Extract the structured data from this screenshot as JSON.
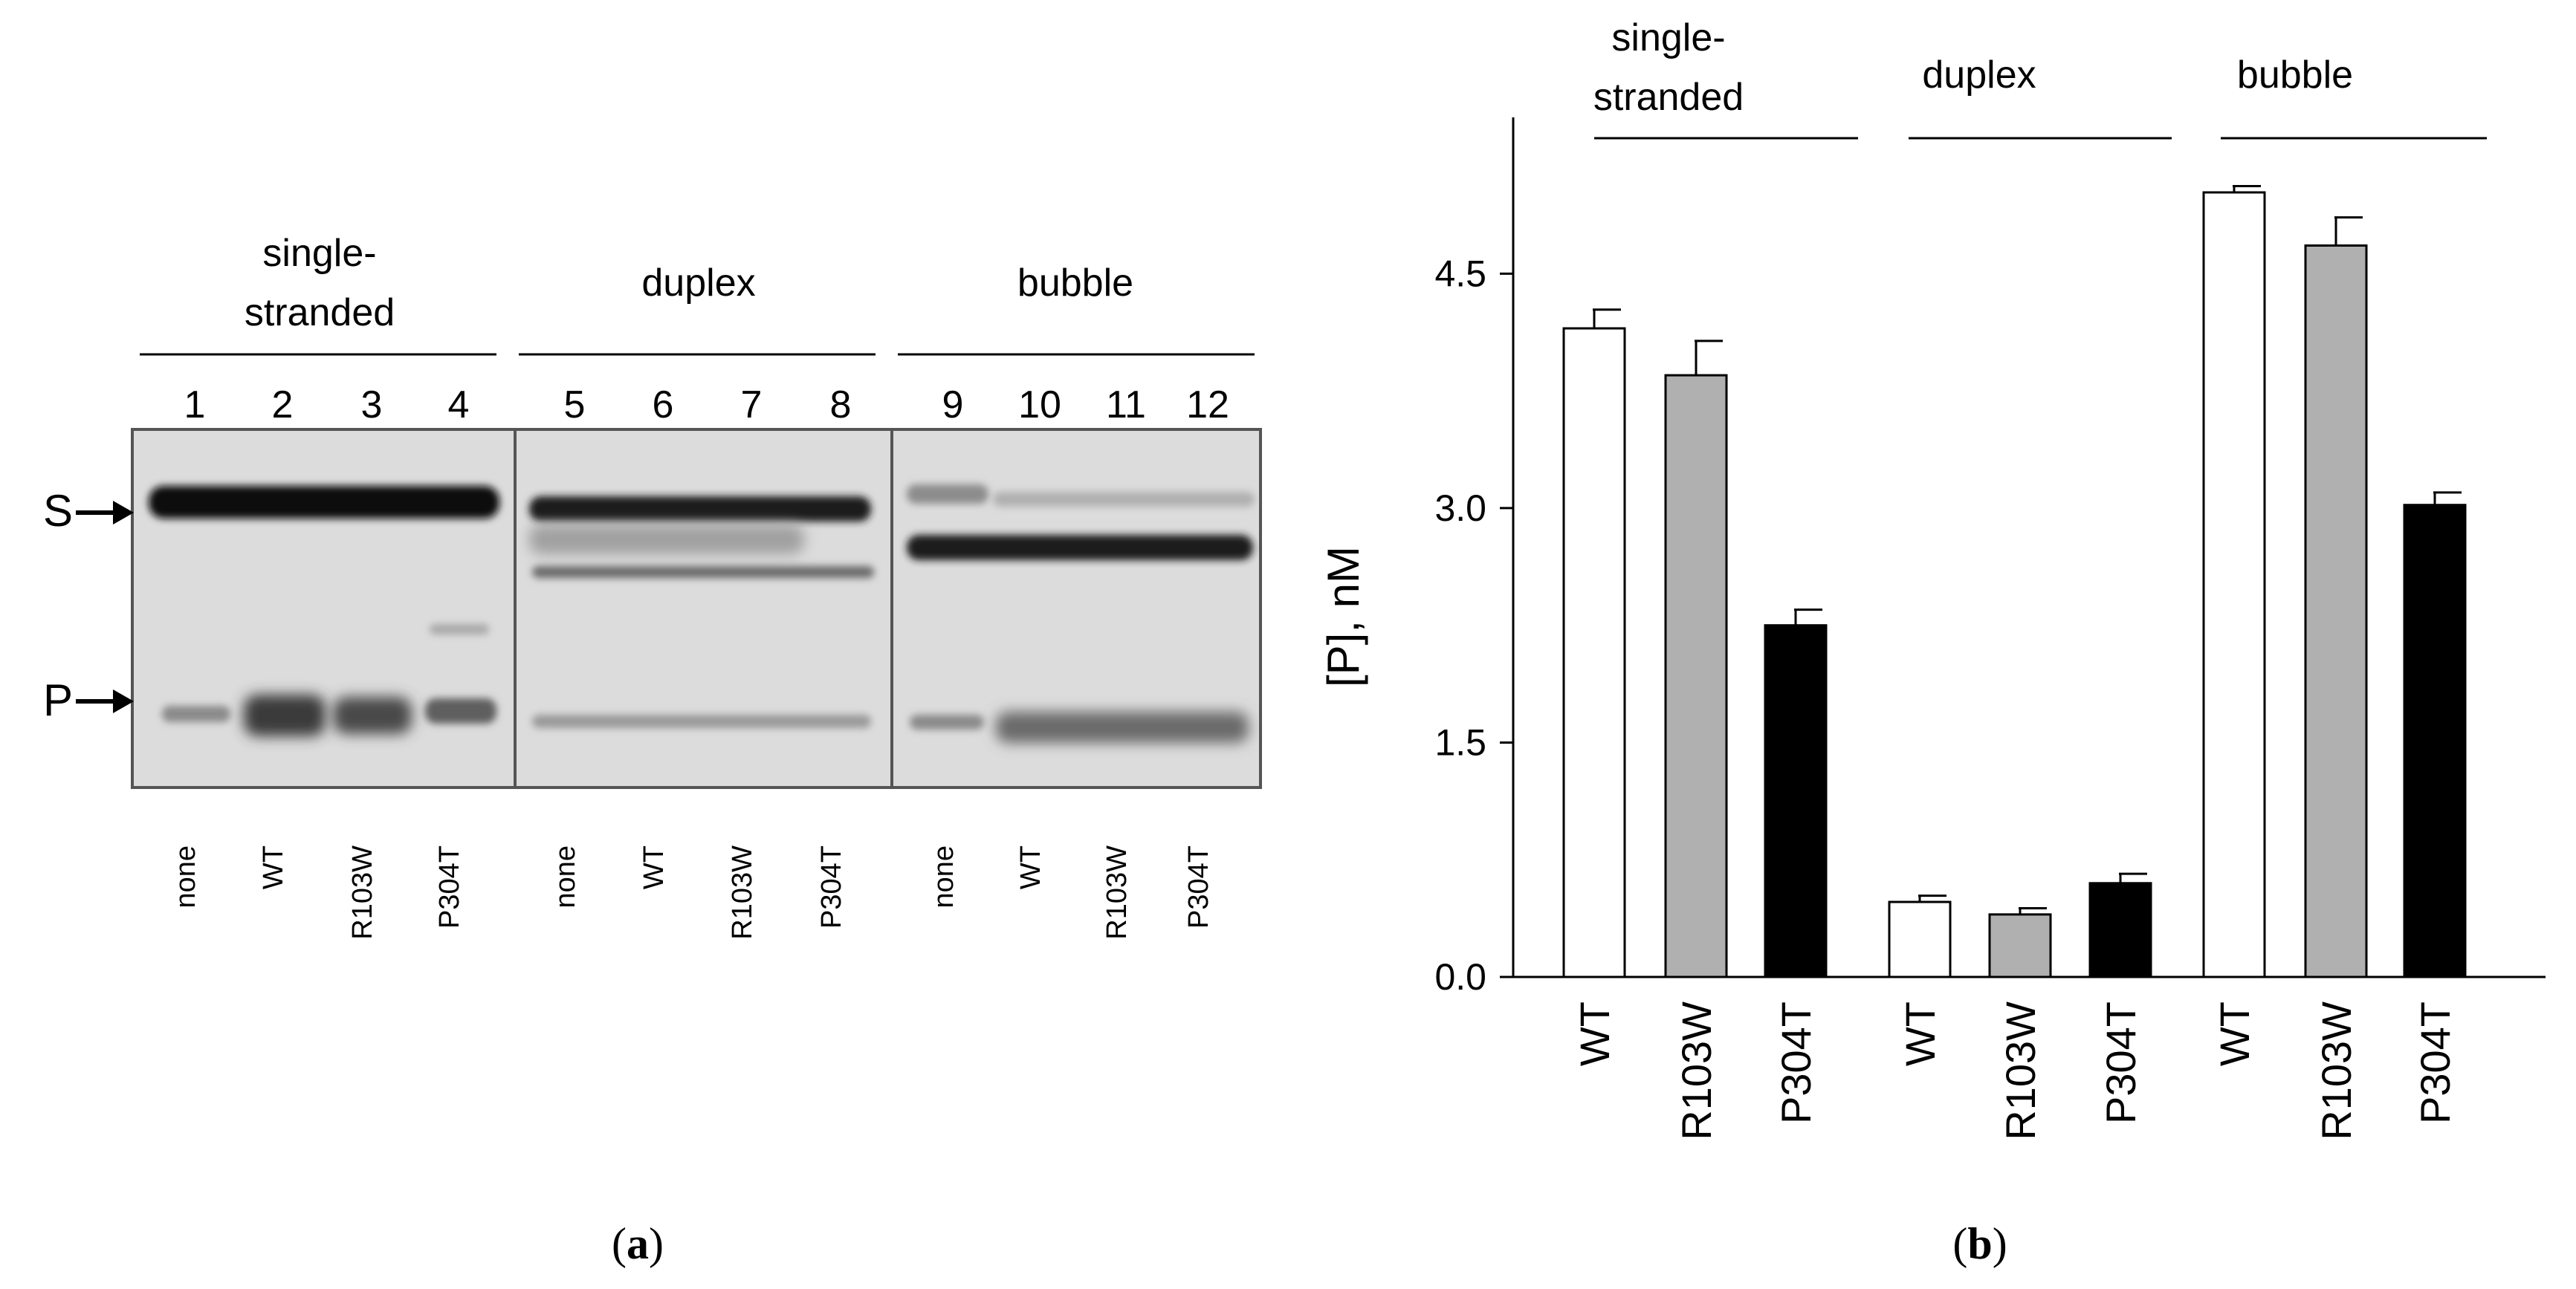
{
  "panel_a": {
    "caption": "a",
    "groups": [
      {
        "label_lines": [
          "single-",
          "stranded"
        ]
      },
      {
        "label_lines": [
          "duplex"
        ]
      },
      {
        "label_lines": [
          "bubble"
        ]
      }
    ],
    "lane_numbers": [
      "1",
      "2",
      "3",
      "4",
      "5",
      "6",
      "7",
      "8",
      "9",
      "10",
      "11",
      "12"
    ],
    "lane_labels": [
      "none",
      "WT",
      "R103W",
      "P304T",
      "none",
      "WT",
      "R103W",
      "P304T",
      "none",
      "WT",
      "R103W",
      "P304T"
    ],
    "band_markers": [
      "S",
      "P"
    ]
  },
  "panel_b": {
    "caption": "b",
    "group_labels": [
      {
        "lines": [
          "single-",
          "stranded"
        ]
      },
      {
        "lines": [
          "duplex"
        ]
      },
      {
        "lines": [
          "bubble"
        ]
      }
    ]
  },
  "chart_data": {
    "type": "bar",
    "ylabel": "[P], nM",
    "ylim": [
      0,
      5.5
    ],
    "yticks": [
      "0.0",
      "1.5",
      "3.0",
      "4.5"
    ],
    "ytick_values": [
      0,
      1.5,
      3.0,
      4.5
    ],
    "categories": [
      "WT",
      "R103W",
      "P304T",
      "WT",
      "R103W",
      "P304T",
      "WT",
      "R103W",
      "P304T"
    ],
    "values": [
      4.15,
      3.85,
      2.25,
      0.48,
      0.4,
      0.6,
      5.02,
      4.68,
      3.02
    ],
    "errors": [
      0.12,
      0.22,
      0.1,
      0.04,
      0.04,
      0.06,
      0.04,
      0.18,
      0.08
    ],
    "bar_colors": [
      "#ffffff",
      "#b0b0b0",
      "#000000",
      "#ffffff",
      "#b0b0b0",
      "#000000",
      "#ffffff",
      "#b0b0b0",
      "#000000"
    ],
    "groups": [
      "single-stranded",
      "duplex",
      "bubble"
    ],
    "grid": false
  }
}
